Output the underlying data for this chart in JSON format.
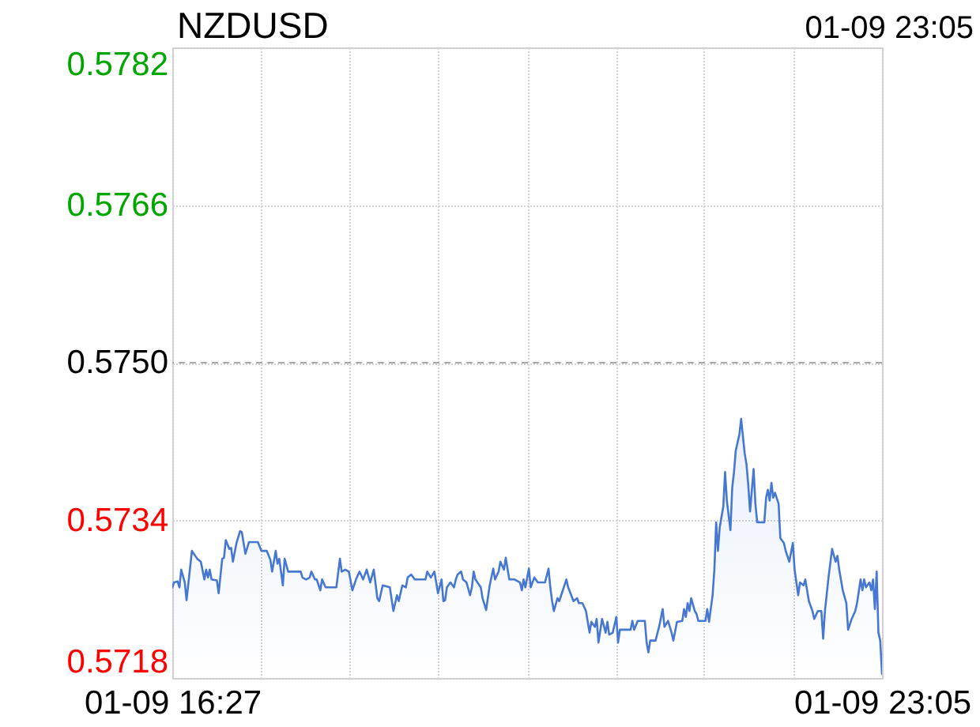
{
  "chart_data": {
    "type": "area",
    "title": "NZDUSD",
    "annotations": [
      "01-09 23:05"
    ],
    "color": "#4677d1",
    "grid": true,
    "xlim": [
      "--01-09T16:27",
      "--01-09T23:05"
    ],
    "xticks": [
      {
        "value": "--01-09T16:27",
        "label": "01-09 16:27"
      },
      {
        "value": "--01-09T17:17",
        "label": null
      },
      {
        "value": "--01-09T18:06",
        "label": null
      },
      {
        "value": "--01-09T18:56",
        "label": null
      },
      {
        "value": "--01-09T19:46",
        "label": null
      },
      {
        "value": "--01-09T20:36",
        "label": null
      },
      {
        "value": "--01-09T21:25",
        "label": null
      },
      {
        "value": "--01-09T22:15",
        "label": null
      },
      {
        "value": "--01-09T23:05",
        "label": "01-09 23:05"
      }
    ],
    "ylim": [
      0.5718,
      0.5782
    ],
    "yticks": [
      0.5718,
      0.5734,
      {
        "value": 0.575,
        "label": "0.5750"
      },
      0.5766,
      0.5782
    ],
    "ref_lines": [
      {
        "axis": "y",
        "value": 0.575,
        "color": "#aaaaaa",
        "line_style": "dashed"
      }
    ],
    "x": [
      "--01-09T16:27",
      "--01-09T16:28",
      "--01-09T16:30",
      "--01-09T16:31",
      "--01-09T16:32",
      "--01-09T16:34",
      "--01-09T16:35",
      "--01-09T16:38",
      "--01-09T16:41",
      "--01-09T16:43",
      "--01-09T16:45",
      "--01-09T16:46",
      "--01-09T16:47",
      "--01-09T16:48",
      "--01-09T16:49",
      "--01-09T16:52",
      "--01-09T16:53",
      "--01-09T16:55",
      "--01-09T16:56",
      "--01-09T16:57",
      "--01-09T16:59",
      "--01-09T17:00",
      "--01-09T17:01",
      "--01-09T17:03",
      "--01-09T17:05",
      "--01-09T17:06",
      "--01-09T17:08",
      "--01-09T17:10",
      "--01-09T17:15",
      "--01-09T17:17",
      "--01-09T17:20",
      "--01-09T17:22",
      "--01-09T17:23",
      "--01-09T17:25",
      "--01-09T17:26",
      "--01-09T17:27",
      "--01-09T17:29",
      "--01-09T17:30",
      "--01-09T17:32",
      "--01-09T17:39",
      "--01-09T17:40",
      "--01-09T17:42",
      "--01-09T17:44",
      "--01-09T17:45",
      "--01-09T17:47",
      "--01-09T17:48",
      "--01-09T17:50",
      "--01-09T17:51",
      "--01-09T17:53",
      "--01-09T17:59",
      "--01-09T18:01",
      "--01-09T18:02",
      "--01-09T18:04",
      "--01-09T18:06",
      "--01-09T18:08",
      "--01-09T18:10",
      "--01-09T18:12",
      "--01-09T18:14",
      "--01-09T18:16",
      "--01-09T18:18",
      "--01-09T18:20",
      "--01-09T18:22",
      "--01-09T18:23",
      "--01-09T18:25",
      "--01-09T18:29",
      "--01-09T18:31",
      "--01-09T18:33",
      "--01-09T18:34",
      "--01-09T18:36",
      "--01-09T18:38",
      "--01-09T18:39",
      "--01-09T18:41",
      "--01-09T18:43",
      "--01-09T18:49",
      "--01-09T18:50",
      "--01-09T18:52",
      "--01-09T18:54",
      "--01-09T18:55",
      "--01-09T18:56",
      "--01-09T18:58",
      "--01-09T18:59",
      "--01-09T19:00",
      "--01-09T19:01",
      "--01-09T19:03",
      "--01-09T19:05",
      "--01-09T19:06",
      "--01-09T19:07",
      "--01-09T19:09",
      "--01-09T19:10",
      "--01-09T19:12",
      "--01-09T19:14",
      "--01-09T19:15",
      "--01-09T19:16",
      "--01-09T19:17",
      "--01-09T19:20",
      "--01-09T19:21",
      "--01-09T19:23",
      "--01-09T19:25",
      "--01-09T19:27",
      "--01-09T19:28",
      "--01-09T19:30",
      "--01-09T19:31",
      "--01-09T19:33",
      "--01-09T19:34",
      "--01-09T19:36",
      "--01-09T19:39",
      "--01-09T19:42",
      "--01-09T19:43",
      "--01-09T19:44",
      "--01-09T19:45",
      "--01-09T19:47",
      "--01-09T19:48",
      "--01-09T19:50",
      "--01-09T19:52",
      "--01-09T19:56",
      "--01-09T19:58",
      "--01-09T19:59",
      "--01-09T20:00",
      "--01-09T20:01",
      "--01-09T20:03",
      "--01-09T20:04",
      "--01-09T20:06",
      "--01-09T20:08",
      "--01-09T20:09",
      "--01-09T20:12",
      "--01-09T20:14",
      "--01-09T20:15",
      "--01-09T20:17",
      "--01-09T20:19",
      "--01-09T20:20",
      "--01-09T20:21",
      "--01-09T20:22",
      "--01-09T20:24",
      "--01-09T20:25",
      "--01-09T20:26",
      "--01-09T20:28",
      "--01-09T20:30",
      "--01-09T20:31",
      "--01-09T20:32",
      "--01-09T20:34",
      "--01-09T20:36",
      "--01-09T20:37",
      "--01-09T20:38",
      "--01-09T20:44",
      "--01-09T20:45",
      "--01-09T20:46",
      "--01-09T20:48",
      "--01-09T20:52",
      "--01-09T20:53",
      "--01-09T20:54",
      "--01-09T20:55",
      "--01-09T20:58",
      "--01-09T21:00",
      "--01-09T21:02",
      "--01-09T21:03",
      "--01-09T21:05",
      "--01-09T21:07",
      "--01-09T21:08",
      "--01-09T21:10",
      "--01-09T21:13",
      "--01-09T21:14",
      "--01-09T21:15",
      "--01-09T21:16",
      "--01-09T21:17",
      "--01-09T21:18",
      "--01-09T21:20",
      "--01-09T21:21",
      "--01-09T21:22",
      "--01-09T21:26",
      "--01-09T21:27",
      "--01-09T21:28",
      "--01-09T21:30",
      "--01-09T21:31",
      "--01-09T21:32",
      "--01-09T21:33",
      "--01-09T21:34",
      "--01-09T21:36",
      "--01-09T21:37",
      "--01-09T21:38",
      "--01-09T21:40",
      "--01-09T21:41",
      "--01-09T21:42",
      "--01-09T21:43",
      "--01-09T21:45",
      "--01-09T21:46",
      "--01-09T21:48",
      "--01-09T21:49",
      "--01-09T21:50",
      "--01-09T21:51",
      "--01-09T21:53",
      "--01-09T21:54",
      "--01-09T21:55",
      "--01-09T21:59",
      "--01-09T22:00",
      "--01-09T22:01",
      "--01-09T22:02",
      "--01-09T22:03",
      "--01-09T22:04",
      "--01-09T22:05",
      "--01-09T22:07",
      "--01-09T22:08",
      "--01-09T22:10",
      "--01-09T22:11",
      "--01-09T22:13",
      "--01-09T22:15",
      "--01-09T22:16",
      "--01-09T22:18",
      "--01-09T22:19",
      "--01-09T22:21",
      "--01-09T22:22",
      "--01-09T22:24",
      "--01-09T22:26",
      "--01-09T22:27",
      "--01-09T22:29",
      "--01-09T22:31",
      "--01-09T22:32",
      "--01-09T22:33",
      "--01-09T22:35",
      "--01-09T22:37",
      "--01-09T22:39",
      "--01-09T22:40",
      "--01-09T22:41",
      "--01-09T22:43",
      "--01-09T22:45",
      "--01-09T22:46",
      "--01-09T22:48",
      "--01-09T22:50",
      "--01-09T22:51",
      "--01-09T22:53",
      "--01-09T22:54",
      "--01-09T22:55",
      "--01-09T22:56",
      "--01-09T22:58",
      "--01-09T22:59",
      "--01-09T23:00",
      "--01-09T23:01",
      "--01-09T23:02",
      "--01-09T23:03",
      "--01-09T23:04",
      "--01-09T23:05"
    ],
    "values": [
      0.57272,
      0.57277,
      0.57278,
      0.57272,
      0.5729,
      0.57277,
      0.57259,
      0.57309,
      0.57301,
      0.57298,
      0.5728,
      0.5729,
      0.57282,
      0.5729,
      0.5728,
      0.57279,
      0.57266,
      0.57301,
      0.57302,
      0.5732,
      0.57311,
      0.57312,
      0.57298,
      0.57317,
      0.57329,
      0.57328,
      0.57306,
      0.57318,
      0.57318,
      0.57309,
      0.57309,
      0.573,
      0.57288,
      0.57309,
      0.57296,
      0.57301,
      0.57274,
      0.57301,
      0.57288,
      0.57288,
      0.57282,
      0.5728,
      0.57282,
      0.57288,
      0.5728,
      0.5728,
      0.57269,
      0.5728,
      0.57272,
      0.57272,
      0.57301,
      0.57288,
      0.5729,
      0.57288,
      0.57269,
      0.5728,
      0.57288,
      0.5728,
      0.5729,
      0.57277,
      0.5729,
      0.57261,
      0.57258,
      0.57274,
      0.57272,
      0.57248,
      0.57264,
      0.57258,
      0.57274,
      0.57272,
      0.57282,
      0.57285,
      0.5728,
      0.5728,
      0.57288,
      0.57282,
      0.57288,
      0.57277,
      0.57266,
      0.5728,
      0.57258,
      0.57259,
      0.57272,
      0.57277,
      0.57272,
      0.5728,
      0.57285,
      0.57288,
      0.5728,
      0.57277,
      0.57264,
      0.57272,
      0.57288,
      0.5728,
      0.57272,
      0.57261,
      0.57249,
      0.57274,
      0.57291,
      0.5728,
      0.57288,
      0.57298,
      0.5729,
      0.57302,
      0.5728,
      0.5728,
      0.57277,
      0.57269,
      0.5728,
      0.57272,
      0.57291,
      0.57272,
      0.57282,
      0.57277,
      0.57277,
      0.57291,
      0.57272,
      0.57258,
      0.57248,
      0.57261,
      0.57258,
      0.57269,
      0.5728,
      0.57272,
      0.57258,
      0.57261,
      0.57256,
      0.57256,
      0.57248,
      0.57237,
      0.57226,
      0.57237,
      0.57232,
      0.5724,
      0.57216,
      0.5724,
      0.57226,
      0.57237,
      0.57224,
      0.57226,
      0.57242,
      0.57216,
      0.57229,
      0.57229,
      0.57238,
      0.57229,
      0.57238,
      0.57238,
      0.57216,
      0.57206,
      0.57218,
      0.57218,
      0.57232,
      0.5725,
      0.57232,
      0.57238,
      0.57226,
      0.57218,
      0.57237,
      0.57238,
      0.5725,
      0.57242,
      0.57256,
      0.57248,
      0.57261,
      0.57248,
      0.57245,
      0.57238,
      0.57238,
      0.5725,
      0.57237,
      0.57264,
      0.5729,
      0.57338,
      0.57309,
      0.57333,
      0.57354,
      0.57389,
      0.5736,
      0.5733,
      0.57373,
      0.57389,
      0.57411,
      0.57427,
      0.57443,
      0.57408,
      0.57397,
      0.57376,
      0.57349,
      0.57392,
      0.57357,
      0.57338,
      0.57338,
      0.57363,
      0.57371,
      0.5736,
      0.57378,
      0.57363,
      0.57368,
      0.57357,
      0.57322,
      0.57317,
      0.57309,
      0.57298,
      0.57317,
      0.5729,
      0.57264,
      0.57277,
      0.57274,
      0.5728,
      0.57258,
      0.57248,
      0.5724,
      0.57248,
      0.57248,
      0.5722,
      0.57248,
      0.57282,
      0.57311,
      0.57298,
      0.57304,
      0.5729,
      0.57269,
      0.57256,
      0.57229,
      0.5724,
      0.57248,
      0.57256,
      0.5728,
      0.57269,
      0.5728,
      0.57272,
      0.57277,
      0.57269,
      0.5728,
      0.5725,
      0.57288,
      0.57226,
      0.57218,
      0.57184
    ]
  }
}
